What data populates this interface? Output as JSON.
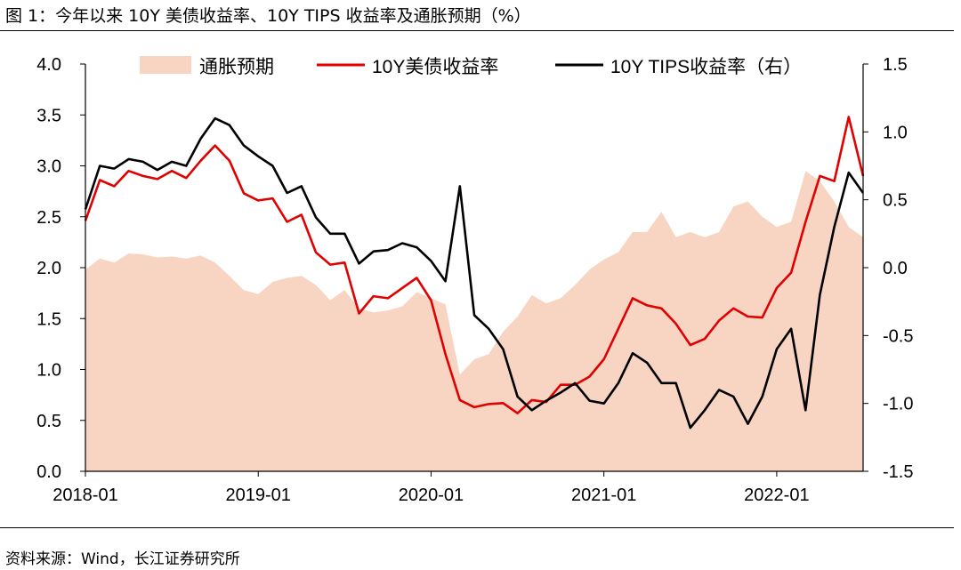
{
  "title": "图 1：今年以来 10Y 美债收益率、10Y TIPS 收益率及通胀预期（%）",
  "source": "资料来源：Wind，长江证券研究所",
  "chart_data": {
    "type": "area",
    "x_tick_labels": [
      "2018-01",
      "2019-01",
      "2020-01",
      "2021-01",
      "2022-01"
    ],
    "x_tick_dates": [
      "2018-01",
      "2019-01",
      "2020-01",
      "2021-01",
      "2022-01"
    ],
    "x_range": [
      "2018-01",
      "2022-07"
    ],
    "y_left": {
      "range": [
        0.0,
        4.0
      ],
      "ticks": [
        "0.0",
        "0.5",
        "1.0",
        "1.5",
        "2.0",
        "2.5",
        "3.0",
        "3.5",
        "4.0"
      ]
    },
    "y_right": {
      "range": [
        -1.5,
        1.5
      ],
      "ticks": [
        "-1.5",
        "-1.0",
        "-0.5",
        "0.0",
        "0.5",
        "1.0",
        "1.5"
      ]
    },
    "legend_position": "top",
    "series": [
      {
        "name": "通胀预期",
        "kind": "area",
        "axis": "left",
        "color": "#F8D5C3",
        "points": [
          [
            "2018-01",
            1.98
          ],
          [
            "2018-02",
            2.09
          ],
          [
            "2018-03",
            2.05
          ],
          [
            "2018-04",
            2.14
          ],
          [
            "2018-05",
            2.13
          ],
          [
            "2018-06",
            2.1
          ],
          [
            "2018-07",
            2.11
          ],
          [
            "2018-08",
            2.09
          ],
          [
            "2018-09",
            2.12
          ],
          [
            "2018-10",
            2.05
          ],
          [
            "2018-11",
            1.92
          ],
          [
            "2018-12",
            1.78
          ],
          [
            "2019-01",
            1.74
          ],
          [
            "2019-02",
            1.86
          ],
          [
            "2019-03",
            1.9
          ],
          [
            "2019-04",
            1.92
          ],
          [
            "2019-05",
            1.83
          ],
          [
            "2019-06",
            1.68
          ],
          [
            "2019-07",
            1.78
          ],
          [
            "2019-08",
            1.6
          ],
          [
            "2019-09",
            1.56
          ],
          [
            "2019-10",
            1.58
          ],
          [
            "2019-11",
            1.62
          ],
          [
            "2019-12",
            1.76
          ],
          [
            "2020-01",
            1.7
          ],
          [
            "2020-02",
            1.64
          ],
          [
            "2020-03",
            0.95
          ],
          [
            "2020-04",
            1.1
          ],
          [
            "2020-05",
            1.15
          ],
          [
            "2020-06",
            1.37
          ],
          [
            "2020-07",
            1.52
          ],
          [
            "2020-08",
            1.73
          ],
          [
            "2020-09",
            1.65
          ],
          [
            "2020-10",
            1.7
          ],
          [
            "2020-11",
            1.83
          ],
          [
            "2020-12",
            1.98
          ],
          [
            "2021-01",
            2.08
          ],
          [
            "2021-02",
            2.15
          ],
          [
            "2021-03",
            2.35
          ],
          [
            "2021-04",
            2.35
          ],
          [
            "2021-05",
            2.55
          ],
          [
            "2021-06",
            2.3
          ],
          [
            "2021-07",
            2.35
          ],
          [
            "2021-08",
            2.3
          ],
          [
            "2021-09",
            2.35
          ],
          [
            "2021-10",
            2.6
          ],
          [
            "2021-11",
            2.65
          ],
          [
            "2021-12",
            2.5
          ],
          [
            "2022-01",
            2.4
          ],
          [
            "2022-02",
            2.45
          ],
          [
            "2022-03",
            2.95
          ],
          [
            "2022-04",
            2.85
          ],
          [
            "2022-05",
            2.65
          ],
          [
            "2022-06",
            2.4
          ],
          [
            "2022-07",
            2.3
          ]
        ]
      },
      {
        "name": "10Y美债收益率",
        "kind": "line",
        "axis": "left",
        "color": "#E00000",
        "points": [
          [
            "2018-01",
            2.46
          ],
          [
            "2018-02",
            2.86
          ],
          [
            "2018-03",
            2.8
          ],
          [
            "2018-04",
            2.95
          ],
          [
            "2018-05",
            2.9
          ],
          [
            "2018-06",
            2.87
          ],
          [
            "2018-07",
            2.95
          ],
          [
            "2018-08",
            2.88
          ],
          [
            "2018-09",
            3.05
          ],
          [
            "2018-10",
            3.2
          ],
          [
            "2018-11",
            3.05
          ],
          [
            "2018-12",
            2.73
          ],
          [
            "2019-01",
            2.66
          ],
          [
            "2019-02",
            2.68
          ],
          [
            "2019-03",
            2.45
          ],
          [
            "2019-04",
            2.52
          ],
          [
            "2019-05",
            2.15
          ],
          [
            "2019-06",
            2.03
          ],
          [
            "2019-07",
            2.05
          ],
          [
            "2019-08",
            1.55
          ],
          [
            "2019-09",
            1.72
          ],
          [
            "2019-10",
            1.7
          ],
          [
            "2019-11",
            1.8
          ],
          [
            "2019-12",
            1.9
          ],
          [
            "2020-01",
            1.68
          ],
          [
            "2020-02",
            1.15
          ],
          [
            "2020-03",
            0.7
          ],
          [
            "2020-04",
            0.63
          ],
          [
            "2020-05",
            0.66
          ],
          [
            "2020-06",
            0.67
          ],
          [
            "2020-07",
            0.57
          ],
          [
            "2020-08",
            0.7
          ],
          [
            "2020-09",
            0.68
          ],
          [
            "2020-10",
            0.85
          ],
          [
            "2020-11",
            0.85
          ],
          [
            "2020-12",
            0.93
          ],
          [
            "2021-01",
            1.1
          ],
          [
            "2021-02",
            1.4
          ],
          [
            "2021-03",
            1.7
          ],
          [
            "2021-04",
            1.63
          ],
          [
            "2021-05",
            1.6
          ],
          [
            "2021-06",
            1.45
          ],
          [
            "2021-07",
            1.24
          ],
          [
            "2021-08",
            1.3
          ],
          [
            "2021-09",
            1.48
          ],
          [
            "2021-10",
            1.6
          ],
          [
            "2021-11",
            1.52
          ],
          [
            "2021-12",
            1.51
          ],
          [
            "2022-01",
            1.8
          ],
          [
            "2022-02",
            1.95
          ],
          [
            "2022-03",
            2.45
          ],
          [
            "2022-04",
            2.9
          ],
          [
            "2022-05",
            2.85
          ],
          [
            "2022-06",
            3.48
          ],
          [
            "2022-07",
            2.9
          ]
        ]
      },
      {
        "name": "10Y TIPS收益率（右）",
        "kind": "line",
        "axis": "right",
        "color": "#000000",
        "points": [
          [
            "2018-01",
            0.43
          ],
          [
            "2018-02",
            0.75
          ],
          [
            "2018-03",
            0.73
          ],
          [
            "2018-04",
            0.8
          ],
          [
            "2018-05",
            0.78
          ],
          [
            "2018-06",
            0.72
          ],
          [
            "2018-07",
            0.78
          ],
          [
            "2018-08",
            0.75
          ],
          [
            "2018-09",
            0.95
          ],
          [
            "2018-10",
            1.1
          ],
          [
            "2018-11",
            1.05
          ],
          [
            "2018-12",
            0.9
          ],
          [
            "2019-01",
            0.82
          ],
          [
            "2019-02",
            0.75
          ],
          [
            "2019-03",
            0.55
          ],
          [
            "2019-04",
            0.6
          ],
          [
            "2019-05",
            0.37
          ],
          [
            "2019-06",
            0.25
          ],
          [
            "2019-07",
            0.25
          ],
          [
            "2019-08",
            0.03
          ],
          [
            "2019-09",
            0.12
          ],
          [
            "2019-10",
            0.13
          ],
          [
            "2019-11",
            0.18
          ],
          [
            "2019-12",
            0.15
          ],
          [
            "2020-01",
            0.05
          ],
          [
            "2020-02",
            -0.1
          ],
          [
            "2020-03",
            0.6
          ],
          [
            "2020-04",
            -0.35
          ],
          [
            "2020-05",
            -0.45
          ],
          [
            "2020-06",
            -0.6
          ],
          [
            "2020-07",
            -0.95
          ],
          [
            "2020-08",
            -1.05
          ],
          [
            "2020-09",
            -0.98
          ],
          [
            "2020-10",
            -0.92
          ],
          [
            "2020-11",
            -0.85
          ],
          [
            "2020-12",
            -0.98
          ],
          [
            "2021-01",
            -1.0
          ],
          [
            "2021-02",
            -0.85
          ],
          [
            "2021-03",
            -0.63
          ],
          [
            "2021-04",
            -0.7
          ],
          [
            "2021-05",
            -0.85
          ],
          [
            "2021-06",
            -0.85
          ],
          [
            "2021-07",
            -1.18
          ],
          [
            "2021-08",
            -1.05
          ],
          [
            "2021-09",
            -0.9
          ],
          [
            "2021-10",
            -0.95
          ],
          [
            "2021-11",
            -1.15
          ],
          [
            "2021-12",
            -0.95
          ],
          [
            "2022-01",
            -0.6
          ],
          [
            "2022-02",
            -0.45
          ],
          [
            "2022-03",
            -1.05
          ],
          [
            "2022-04",
            -0.2
          ],
          [
            "2022-05",
            0.3
          ],
          [
            "2022-06",
            0.7
          ],
          [
            "2022-07",
            0.55
          ]
        ]
      }
    ]
  }
}
